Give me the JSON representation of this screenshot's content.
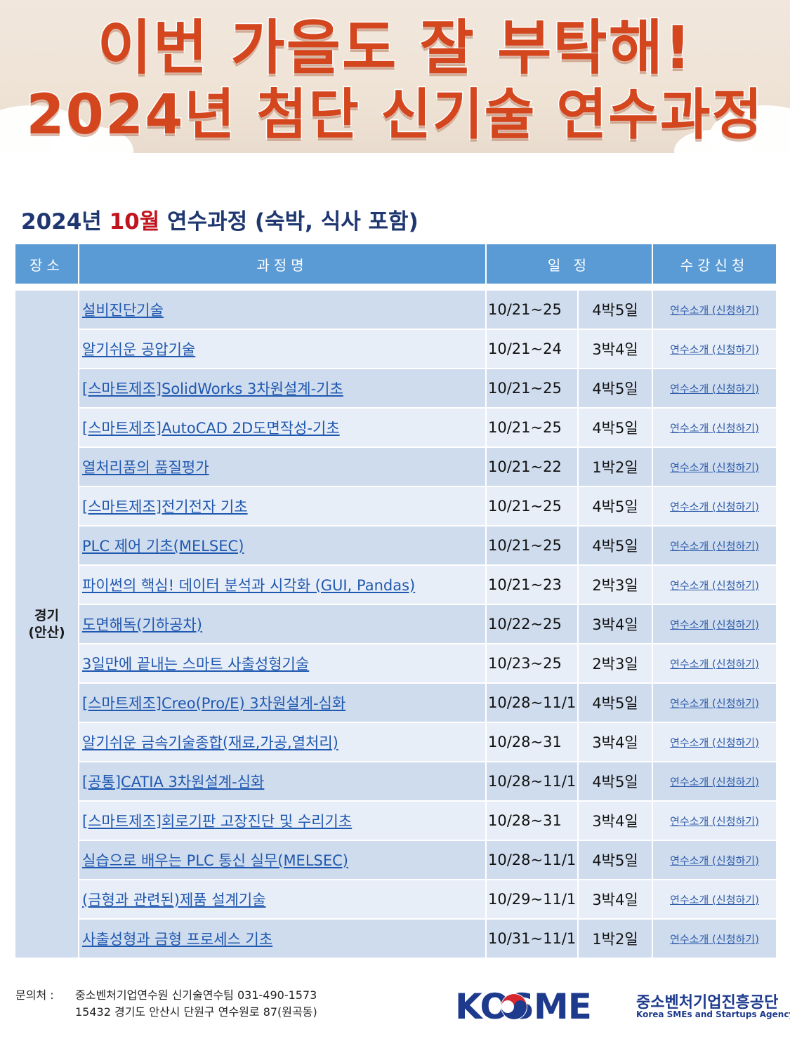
{
  "banner": {
    "line1": "이번 가을도 잘 부탁해!",
    "line2": "2024년 첨단 신기술 연수과정"
  },
  "title": {
    "prefix": "2024년 ",
    "month": "10월",
    "suffix": " 연수과정 (숙박, 식사 포함)"
  },
  "table": {
    "headers": {
      "location": "장소",
      "course": "과정명",
      "schedule": "일 정",
      "apply": "수강신청"
    },
    "location_line1": "경기",
    "location_line2": "(안산)",
    "apply_label": "연수소개 (신청하기)",
    "rows": [
      {
        "course": "설비진단기술",
        "date": "10/21~25",
        "duration": "4박5일"
      },
      {
        "course": "알기쉬운 공압기술",
        "date": "10/21~24",
        "duration": "3박4일"
      },
      {
        "course": "[스마트제조]SolidWorks 3차원설계-기초",
        "date": "10/21~25",
        "duration": "4박5일"
      },
      {
        "course": "[스마트제조]AutoCAD 2D도면작성-기초",
        "date": "10/21~25",
        "duration": "4박5일"
      },
      {
        "course": "열처리품의 품질평가",
        "date": "10/21~22",
        "duration": "1박2일"
      },
      {
        "course": "[스마트제조]전기전자 기초",
        "date": "10/21~25",
        "duration": "4박5일"
      },
      {
        "course": "PLC 제어 기초(MELSEC)",
        "date": "10/21~25",
        "duration": "4박5일"
      },
      {
        "course": "파이썬의 핵심! 데이터 분석과 시각화 (GUI, Pandas)",
        "date": "10/21~23",
        "duration": "2박3일"
      },
      {
        "course": "도면해독(기하공차)",
        "date": "10/22~25",
        "duration": "3박4일"
      },
      {
        "course": "3일만에 끝내는 스마트 사출성형기술",
        "date": "10/23~25",
        "duration": "2박3일"
      },
      {
        "course": "[스마트제조]Creo(Pro/E) 3차원설계-심화",
        "date": "10/28~11/1",
        "duration": "4박5일"
      },
      {
        "course": "알기쉬운 금속기술종합(재료,가공,열처리)",
        "date": "10/28~31",
        "duration": "3박4일"
      },
      {
        "course": "[공통]CATIA 3차원설계-심화",
        "date": "10/28~11/1",
        "duration": "4박5일"
      },
      {
        "course": "[스마트제조]회로기판 고장진단 및 수리기초",
        "date": "10/28~31",
        "duration": "3박4일"
      },
      {
        "course": "실습으로 배우는 PLC 통신 실무(MELSEC)",
        "date": "10/28~11/1",
        "duration": "4박5일"
      },
      {
        "course": "(금형과 관련된)제품 설계기술",
        "date": "10/29~11/1",
        "duration": "3박4일"
      },
      {
        "course": "사출성형과 금형 프로세스 기초",
        "date": "10/31~11/1",
        "duration": "1박2일"
      }
    ]
  },
  "footer": {
    "contact_label": "문의처 :",
    "contact_line1": "중소벤처기업연수원 신기술연수팀 031-490-1573",
    "contact_line2": "15432 경기도 안산시 단원구 연수원로 87(원곡동)",
    "logo_text": "KOSME",
    "logo_ko": "중소벤처기업진흥공단",
    "logo_en": "Korea SMEs and Startups Agency"
  },
  "colors": {
    "banner_text": "#d4461e",
    "title_text": "#1f3770",
    "title_month": "#c0151e",
    "header_bg": "#5b9bd5",
    "row_dark": "#cfdcee",
    "row_light": "#e8eef7",
    "link": "#1f58b0",
    "logo": "#1d3a8c"
  }
}
